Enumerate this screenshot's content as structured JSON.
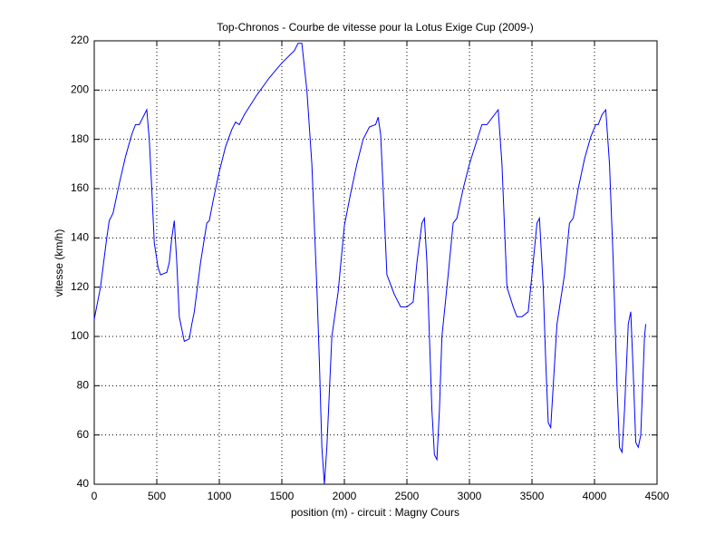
{
  "chart_data": {
    "type": "line",
    "title": "Top-Chronos - Courbe de vitesse pour la Lotus Exige Cup (2009-)",
    "xlabel": "position (m) - circuit : Magny Cours",
    "ylabel": "vitesse (km/h)",
    "xlim": [
      0,
      4500
    ],
    "ylim": [
      40,
      220
    ],
    "xticks": [
      0,
      500,
      1000,
      1500,
      2000,
      2500,
      3000,
      3500,
      4000,
      4500
    ],
    "yticks": [
      40,
      60,
      80,
      100,
      120,
      140,
      160,
      180,
      200,
      220
    ],
    "grid": true,
    "x": [
      0,
      50,
      100,
      120,
      150,
      200,
      250,
      300,
      330,
      360,
      400,
      420,
      440,
      460,
      480,
      510,
      530,
      580,
      600,
      620,
      640,
      660,
      680,
      720,
      760,
      780,
      800,
      850,
      900,
      920,
      950,
      1000,
      1050,
      1100,
      1130,
      1160,
      1200,
      1300,
      1400,
      1500,
      1600,
      1630,
      1660,
      1700,
      1740,
      1780,
      1800,
      1820,
      1840,
      1860,
      1900,
      1950,
      2000,
      2050,
      2100,
      2150,
      2200,
      2250,
      2270,
      2290,
      2310,
      2340,
      2400,
      2450,
      2500,
      2550,
      2580,
      2620,
      2640,
      2660,
      2680,
      2700,
      2720,
      2740,
      2760,
      2780,
      2830,
      2870,
      2900,
      2950,
      3000,
      3050,
      3100,
      3140,
      3200,
      3230,
      3260,
      3300,
      3350,
      3380,
      3420,
      3470,
      3500,
      3540,
      3560,
      3590,
      3610,
      3630,
      3650,
      3670,
      3700,
      3760,
      3800,
      3830,
      3870,
      3920,
      3970,
      4010,
      4030,
      4060,
      4090,
      4120,
      4150,
      4180,
      4200,
      4220,
      4240,
      4270,
      4290,
      4310,
      4330,
      4350,
      4370,
      4400,
      4410
    ],
    "series": [
      {
        "name": "vitesse",
        "color": "#0000ff",
        "values": [
          107,
          120,
          140,
          147,
          150,
          162,
          173,
          182,
          186,
          186,
          190,
          192,
          180,
          160,
          138,
          128,
          125,
          126,
          130,
          140,
          147,
          130,
          108,
          98,
          99,
          105,
          110,
          130,
          146,
          147,
          155,
          167,
          177,
          184,
          187,
          186,
          190,
          198,
          205,
          211,
          216,
          219,
          219,
          200,
          170,
          120,
          90,
          55,
          40,
          55,
          100,
          118,
          145,
          158,
          170,
          180,
          185,
          186,
          189,
          182,
          160,
          125,
          117,
          112,
          112,
          114,
          130,
          146,
          148,
          130,
          100,
          70,
          52,
          50,
          70,
          100,
          125,
          146,
          148,
          160,
          170,
          178,
          186,
          186,
          190,
          192,
          170,
          120,
          112,
          108,
          108,
          110,
          125,
          146,
          148,
          120,
          90,
          65,
          63,
          80,
          105,
          125,
          146,
          148,
          160,
          172,
          181,
          186,
          186,
          190,
          192,
          170,
          130,
          80,
          55,
          53,
          70,
          105,
          110,
          85,
          57,
          55,
          60,
          100,
          105
        ]
      }
    ]
  }
}
